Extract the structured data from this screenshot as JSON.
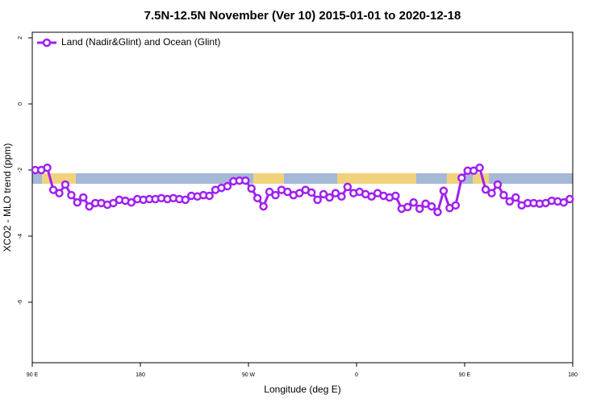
{
  "chart_data": {
    "type": "line",
    "title": "7.5N-12.5N November (Ver 10)   2015-01-01 to 2020-12-18",
    "x_label": "Longitude (deg E)",
    "y_label": "XCO2 - MLO trend (ppm)",
    "xlim": [
      90,
      540
    ],
    "ylim": [
      -7.83,
      2.17
    ],
    "xticks": [
      {
        "value": 90,
        "label": "90 E"
      },
      {
        "value": 180,
        "label": "180"
      },
      {
        "value": 270,
        "label": "90 W"
      },
      {
        "value": 360,
        "label": "0"
      },
      {
        "value": 450,
        "label": "90 E"
      },
      {
        "value": 540,
        "label": "180"
      }
    ],
    "yticks": [
      -6,
      -4,
      -2,
      0,
      2
    ],
    "legend": "top-left",
    "x": [
      92.5,
      97.5,
      102.5,
      107.5,
      112.5,
      117.5,
      122.5,
      127.5,
      132.5,
      137.5,
      142.5,
      147.5,
      152.5,
      157.5,
      162.5,
      167.5,
      172.5,
      177.5,
      182.5,
      187.5,
      192.5,
      197.5,
      202.5,
      207.5,
      212.5,
      217.5,
      222.5,
      227.5,
      232.5,
      237.5,
      242.5,
      247.5,
      252.5,
      257.5,
      262.5,
      267.5,
      272.5,
      277.5,
      282.5,
      287.5,
      292.5,
      297.5,
      302.5,
      307.5,
      312.5,
      317.5,
      322.5,
      327.5,
      332.5,
      337.5,
      342.5,
      347.5,
      352.5,
      357.5,
      362.5,
      367.5,
      372.5,
      377.5,
      382.5,
      387.5,
      392.5,
      397.5,
      402.5,
      407.5,
      412.5,
      417.5,
      422.5,
      427.5,
      432.5,
      437.5,
      442.5,
      447.5,
      452.5,
      457.5,
      462.5,
      467.5,
      472.5,
      477.5,
      482.5,
      487.5,
      492.5,
      497.5,
      502.5,
      507.5,
      512.5,
      517.5,
      522.5,
      527.5,
      532.5,
      537.5
    ],
    "series": [
      {
        "name": "Land (Nadir&Glint) and Ocean (Glint)",
        "color": "#a020f0",
        "values": [
          -2.0,
          -2.0,
          -1.93,
          -2.6,
          -2.7,
          -2.44,
          -2.76,
          -2.98,
          -2.83,
          -3.1,
          -3.0,
          -3.0,
          -3.05,
          -3.0,
          -2.9,
          -2.93,
          -2.98,
          -2.88,
          -2.9,
          -2.88,
          -2.88,
          -2.85,
          -2.88,
          -2.85,
          -2.88,
          -2.9,
          -2.78,
          -2.8,
          -2.76,
          -2.78,
          -2.6,
          -2.54,
          -2.49,
          -2.34,
          -2.32,
          -2.32,
          -2.56,
          -2.85,
          -3.1,
          -2.66,
          -2.76,
          -2.6,
          -2.66,
          -2.76,
          -2.7,
          -2.6,
          -2.68,
          -2.9,
          -2.73,
          -2.83,
          -2.7,
          -2.8,
          -2.51,
          -2.7,
          -2.66,
          -2.73,
          -2.8,
          -2.7,
          -2.78,
          -2.83,
          -2.78,
          -3.17,
          -3.12,
          -2.98,
          -3.17,
          -3.02,
          -3.1,
          -3.27,
          -2.63,
          -3.15,
          -3.07,
          -2.24,
          -2.02,
          -2.02,
          -1.93,
          -2.59,
          -2.7,
          -2.44,
          -2.76,
          -2.95,
          -2.83,
          -3.07,
          -3.0,
          -3.0,
          -3.02,
          -3.0,
          -2.93,
          -2.95,
          -2.98,
          -2.88
        ]
      }
    ]
  }
}
